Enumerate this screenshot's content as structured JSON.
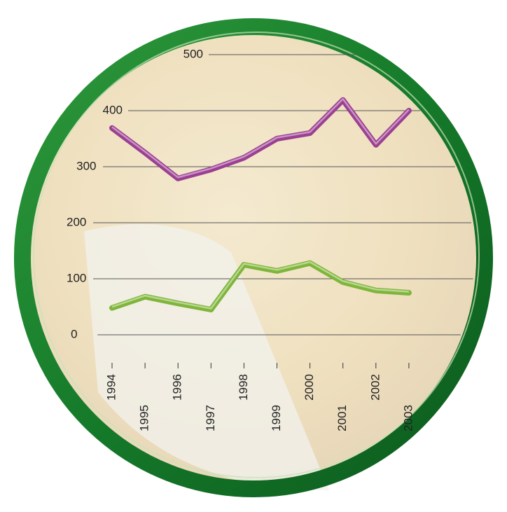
{
  "chart_data": {
    "type": "line",
    "categories": [
      "1994",
      "1995",
      "1996",
      "1997",
      "1998",
      "1999",
      "2000",
      "2001",
      "2002",
      "2003"
    ],
    "series": [
      {
        "color": "#9b3f92",
        "values": [
          369,
          325,
          279,
          295,
          316,
          350,
          360,
          419,
          339,
          400
        ]
      },
      {
        "color": "#7fb53a",
        "values": [
          48,
          68,
          56,
          45,
          125,
          114,
          128,
          94,
          79,
          75
        ]
      }
    ],
    "ylim": [
      0,
      500
    ],
    "yticks": [
      0,
      100,
      200,
      300,
      400,
      500
    ],
    "grid": true
  }
}
